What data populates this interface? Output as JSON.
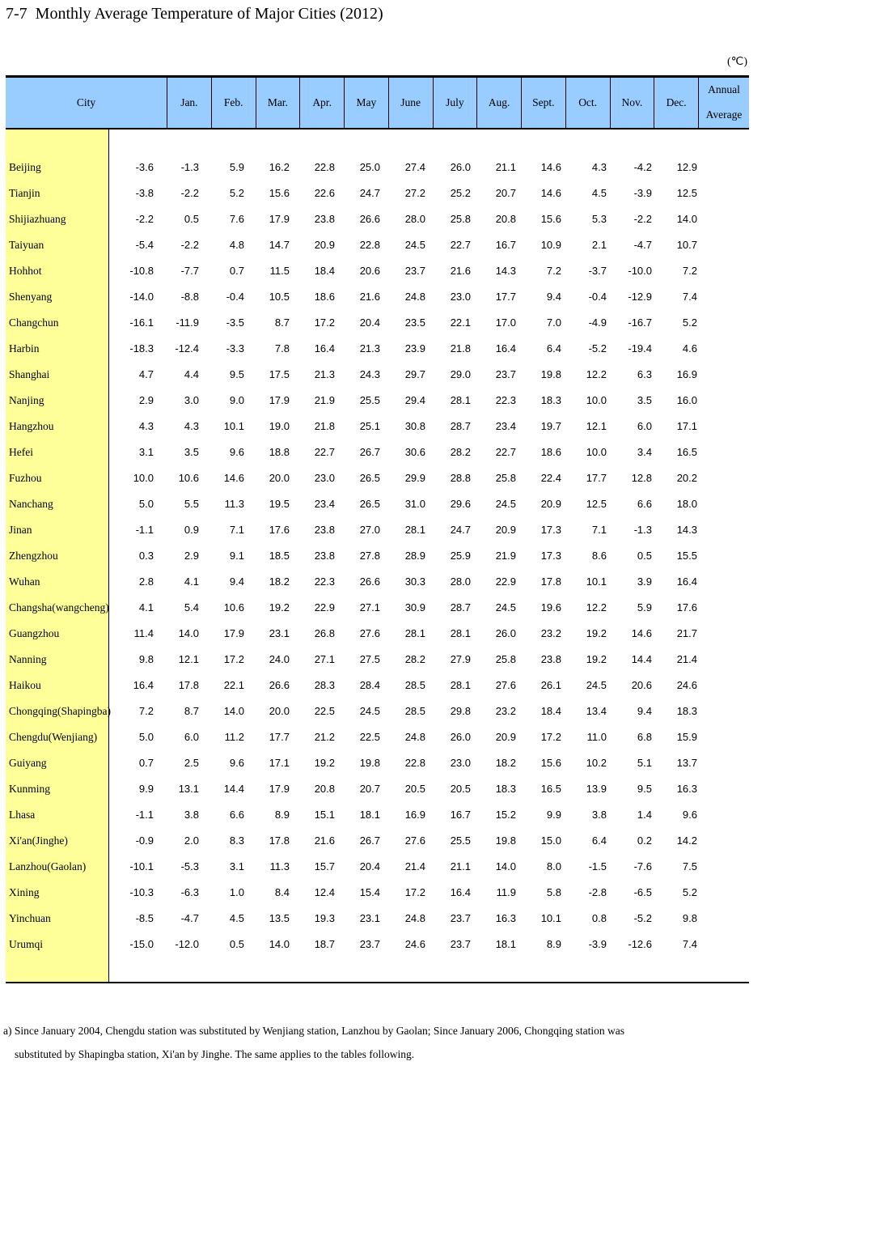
{
  "title": "7-7  Monthly Average Temperature of Major Cities (2012)",
  "unit": "(℃)",
  "colors": {
    "header_bg": "#99ccff",
    "city_column_bg": "#ffff99",
    "border": "#000000"
  },
  "table": {
    "columns": [
      "City",
      "Jan.",
      "Feb.",
      "Mar.",
      "Apr.",
      "May",
      "June",
      "July",
      "Aug.",
      "Sept.",
      "Oct.",
      "Nov.",
      "Dec."
    ],
    "annual_header": [
      "Annual",
      "Average"
    ],
    "rows": [
      {
        "city": "Beijing",
        "values": [
          "-3.6",
          "-1.3",
          "5.9",
          "16.2",
          "22.8",
          "25.0",
          "27.4",
          "26.0",
          "21.1",
          "14.6",
          "4.3",
          "-4.2",
          "12.9"
        ]
      },
      {
        "city": "Tianjin",
        "values": [
          "-3.8",
          "-2.2",
          "5.2",
          "15.6",
          "22.6",
          "24.7",
          "27.2",
          "25.2",
          "20.7",
          "14.6",
          "4.5",
          "-3.9",
          "12.5"
        ]
      },
      {
        "city": "Shijiazhuang",
        "values": [
          "-2.2",
          "0.5",
          "7.6",
          "17.9",
          "23.8",
          "26.6",
          "28.0",
          "25.8",
          "20.8",
          "15.6",
          "5.3",
          "-2.2",
          "14.0"
        ]
      },
      {
        "city": "Taiyuan",
        "values": [
          "-5.4",
          "-2.2",
          "4.8",
          "14.7",
          "20.9",
          "22.8",
          "24.5",
          "22.7",
          "16.7",
          "10.9",
          "2.1",
          "-4.7",
          "10.7"
        ]
      },
      {
        "city": "Hohhot",
        "values": [
          "-10.8",
          "-7.7",
          "0.7",
          "11.5",
          "18.4",
          "20.6",
          "23.7",
          "21.6",
          "14.3",
          "7.2",
          "-3.7",
          "-10.0",
          "7.2"
        ]
      },
      {
        "city": "Shenyang",
        "values": [
          "-14.0",
          "-8.8",
          "-0.4",
          "10.5",
          "18.6",
          "21.6",
          "24.8",
          "23.0",
          "17.7",
          "9.4",
          "-0.4",
          "-12.9",
          "7.4"
        ]
      },
      {
        "city": "Changchun",
        "values": [
          "-16.1",
          "-11.9",
          "-3.5",
          "8.7",
          "17.2",
          "20.4",
          "23.5",
          "22.1",
          "17.0",
          "7.0",
          "-4.9",
          "-16.7",
          "5.2"
        ]
      },
      {
        "city": "Harbin",
        "values": [
          "-18.3",
          "-12.4",
          "-3.3",
          "7.8",
          "16.4",
          "21.3",
          "23.9",
          "21.8",
          "16.4",
          "6.4",
          "-5.2",
          "-19.4",
          "4.6"
        ]
      },
      {
        "city": "Shanghai",
        "values": [
          "4.7",
          "4.4",
          "9.5",
          "17.5",
          "21.3",
          "24.3",
          "29.7",
          "29.0",
          "23.7",
          "19.8",
          "12.2",
          "6.3",
          "16.9"
        ]
      },
      {
        "city": "Nanjing",
        "values": [
          "2.9",
          "3.0",
          "9.0",
          "17.9",
          "21.9",
          "25.5",
          "29.4",
          "28.1",
          "22.3",
          "18.3",
          "10.0",
          "3.5",
          "16.0"
        ]
      },
      {
        "city": "Hangzhou",
        "values": [
          "4.3",
          "4.3",
          "10.1",
          "19.0",
          "21.8",
          "25.1",
          "30.8",
          "28.7",
          "23.4",
          "19.7",
          "12.1",
          "6.0",
          "17.1"
        ]
      },
      {
        "city": "Hefei",
        "values": [
          "3.1",
          "3.5",
          "9.6",
          "18.8",
          "22.7",
          "26.7",
          "30.6",
          "28.2",
          "22.7",
          "18.6",
          "10.0",
          "3.4",
          "16.5"
        ]
      },
      {
        "city": "Fuzhou",
        "values": [
          "10.0",
          "10.6",
          "14.6",
          "20.0",
          "23.0",
          "26.5",
          "29.9",
          "28.8",
          "25.8",
          "22.4",
          "17.7",
          "12.8",
          "20.2"
        ]
      },
      {
        "city": "Nanchang",
        "values": [
          "5.0",
          "5.5",
          "11.3",
          "19.5",
          "23.4",
          "26.5",
          "31.0",
          "29.6",
          "24.5",
          "20.9",
          "12.5",
          "6.6",
          "18.0"
        ]
      },
      {
        "city": "Jinan",
        "values": [
          "-1.1",
          "0.9",
          "7.1",
          "17.6",
          "23.8",
          "27.0",
          "28.1",
          "24.7",
          "20.9",
          "17.3",
          "7.1",
          "-1.3",
          "14.3"
        ]
      },
      {
        "city": "Zhengzhou",
        "values": [
          "0.3",
          "2.9",
          "9.1",
          "18.5",
          "23.8",
          "27.8",
          "28.9",
          "25.9",
          "21.9",
          "17.3",
          "8.6",
          "0.5",
          "15.5"
        ]
      },
      {
        "city": "Wuhan",
        "values": [
          "2.8",
          "4.1",
          "9.4",
          "18.2",
          "22.3",
          "26.6",
          "30.3",
          "28.0",
          "22.9",
          "17.8",
          "10.1",
          "3.9",
          "16.4"
        ]
      },
      {
        "city": "Changsha(wangcheng)",
        "values": [
          "4.1",
          "5.4",
          "10.6",
          "19.2",
          "22.9",
          "27.1",
          "30.9",
          "28.7",
          "24.5",
          "19.6",
          "12.2",
          "5.9",
          "17.6"
        ]
      },
      {
        "city": "Guangzhou",
        "values": [
          "11.4",
          "14.0",
          "17.9",
          "23.1",
          "26.8",
          "27.6",
          "28.1",
          "28.1",
          "26.0",
          "23.2",
          "19.2",
          "14.6",
          "21.7"
        ]
      },
      {
        "city": "Nanning",
        "values": [
          "9.8",
          "12.1",
          "17.2",
          "24.0",
          "27.1",
          "27.5",
          "28.2",
          "27.9",
          "25.8",
          "23.8",
          "19.2",
          "14.4",
          "21.4"
        ]
      },
      {
        "city": "Haikou",
        "values": [
          "16.4",
          "17.8",
          "22.1",
          "26.6",
          "28.3",
          "28.4",
          "28.5",
          "28.1",
          "27.6",
          "26.1",
          "24.5",
          "20.6",
          "24.6"
        ]
      },
      {
        "city": "Chongqing(Shapingba)",
        "values": [
          "7.2",
          "8.7",
          "14.0",
          "20.0",
          "22.5",
          "24.5",
          "28.5",
          "29.8",
          "23.2",
          "18.4",
          "13.4",
          "9.4",
          "18.3"
        ]
      },
      {
        "city": "Chengdu(Wenjiang)",
        "values": [
          "5.0",
          "6.0",
          "11.2",
          "17.7",
          "21.2",
          "22.5",
          "24.8",
          "26.0",
          "20.9",
          "17.2",
          "11.0",
          "6.8",
          "15.9"
        ]
      },
      {
        "city": "Guiyang",
        "values": [
          "0.7",
          "2.5",
          "9.6",
          "17.1",
          "19.2",
          "19.8",
          "22.8",
          "23.0",
          "18.2",
          "15.6",
          "10.2",
          "5.1",
          "13.7"
        ]
      },
      {
        "city": "Kunming",
        "values": [
          "9.9",
          "13.1",
          "14.4",
          "17.9",
          "20.8",
          "20.7",
          "20.5",
          "20.5",
          "18.3",
          "16.5",
          "13.9",
          "9.5",
          "16.3"
        ]
      },
      {
        "city": "Lhasa",
        "values": [
          "-1.1",
          "3.8",
          "6.6",
          "8.9",
          "15.1",
          "18.1",
          "16.9",
          "16.7",
          "15.2",
          "9.9",
          "3.8",
          "1.4",
          "9.6"
        ]
      },
      {
        "city": "Xi'an(Jinghe)",
        "values": [
          "-0.9",
          "2.0",
          "8.3",
          "17.8",
          "21.6",
          "26.7",
          "27.6",
          "25.5",
          "19.8",
          "15.0",
          "6.4",
          "0.2",
          "14.2"
        ]
      },
      {
        "city": "Lanzhou(Gaolan)",
        "values": [
          "-10.1",
          "-5.3",
          "3.1",
          "11.3",
          "15.7",
          "20.4",
          "21.4",
          "21.1",
          "14.0",
          "8.0",
          "-1.5",
          "-7.6",
          "7.5"
        ]
      },
      {
        "city": "Xining",
        "values": [
          "-10.3",
          "-6.3",
          "1.0",
          "8.4",
          "12.4",
          "15.4",
          "17.2",
          "16.4",
          "11.9",
          "5.8",
          "-2.8",
          "-6.5",
          "5.2"
        ]
      },
      {
        "city": "Yinchuan",
        "values": [
          "-8.5",
          "-4.7",
          "4.5",
          "13.5",
          "19.3",
          "23.1",
          "24.8",
          "23.7",
          "16.3",
          "10.1",
          "0.8",
          "-5.2",
          "9.8"
        ]
      },
      {
        "city": "Urumqi",
        "values": [
          "-15.0",
          "-12.0",
          "0.5",
          "14.0",
          "18.7",
          "23.7",
          "24.6",
          "23.7",
          "18.1",
          "8.9",
          "-3.9",
          "-12.6",
          "7.4"
        ]
      }
    ]
  },
  "footnote": {
    "line1": "a) Since January 2004, Chengdu station was substituted by Wenjiang station, Lanzhou by Gaolan; Since January 2006, Chongqing station was",
    "line2": "substituted by Shapingba station, Xi'an by Jinghe. The same applies to the tables following."
  }
}
